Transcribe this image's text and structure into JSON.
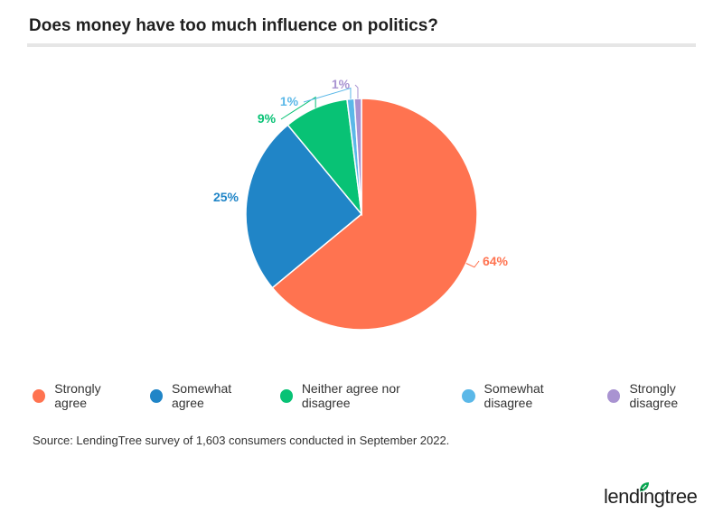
{
  "title": "Does money have too much influence on politics?",
  "source": "Source: LendingTree survey of 1,603 consumers conducted in September 2022.",
  "logo": {
    "text": "lendingtree",
    "accent": "#08a651"
  },
  "chart_data": {
    "type": "pie",
    "title": "Does money have too much influence on politics?",
    "legend_position": "bottom",
    "slices": [
      {
        "label": "Strongly agree",
        "value": 64,
        "display": "64%",
        "color": "#ff7350"
      },
      {
        "label": "Somewhat agree",
        "value": 25,
        "display": "25%",
        "color": "#2085c7"
      },
      {
        "label": "Neither agree nor disagree",
        "value": 9,
        "display": "9%",
        "color": "#08c275"
      },
      {
        "label": "Somewhat disagree",
        "value": 1,
        "display": "1%",
        "color": "#5bb8e8"
      },
      {
        "label": "Strongly disagree",
        "value": 1,
        "display": "1%",
        "color": "#a993d1"
      }
    ]
  }
}
